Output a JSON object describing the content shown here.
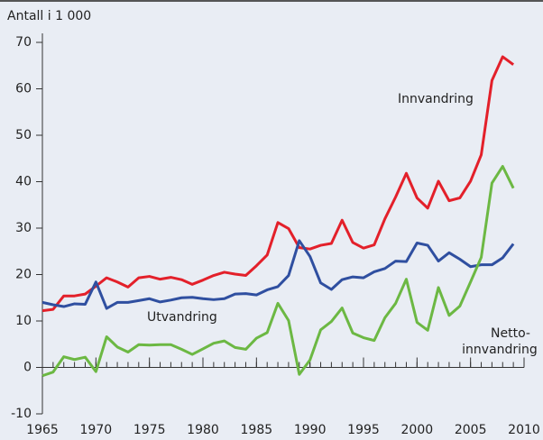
{
  "chart_data": {
    "type": "line",
    "y_axis_label": "Antall i 1 000",
    "x": [
      1965,
      1966,
      1967,
      1968,
      1969,
      1970,
      1971,
      1972,
      1973,
      1974,
      1975,
      1976,
      1977,
      1978,
      1979,
      1980,
      1981,
      1982,
      1983,
      1984,
      1985,
      1986,
      1987,
      1988,
      1989,
      1990,
      1991,
      1992,
      1993,
      1994,
      1995,
      1996,
      1997,
      1998,
      1999,
      2000,
      2001,
      2002,
      2003,
      2004,
      2005,
      2006,
      2007,
      2008,
      2009
    ],
    "series": [
      {
        "name": "Innvandring",
        "color": "#e3202a",
        "values": [
          12.2,
          12.5,
          15.4,
          15.4,
          15.8,
          17.5,
          19.3,
          18.4,
          17.3,
          19.3,
          19.6,
          19.0,
          19.4,
          18.9,
          17.9,
          18.8,
          19.8,
          20.5,
          20.1,
          19.8,
          21.9,
          24.2,
          31.2,
          29.9,
          25.8,
          25.5,
          26.3,
          26.7,
          31.7,
          26.9,
          25.7,
          26.4,
          32.0,
          36.7,
          41.8,
          36.5,
          34.3,
          40.1,
          35.9,
          36.5,
          40.1,
          45.8,
          61.8,
          66.9,
          65.2
        ]
      },
      {
        "name": "Utvandring",
        "color": "#2f4fa0",
        "values": [
          14.0,
          13.5,
          13.1,
          13.7,
          13.6,
          18.4,
          12.7,
          14.0,
          14.0,
          14.4,
          14.8,
          14.1,
          14.5,
          15.0,
          15.1,
          14.8,
          14.6,
          14.8,
          15.8,
          15.9,
          15.6,
          16.7,
          17.4,
          19.8,
          27.3,
          23.9,
          18.2,
          16.8,
          18.9,
          19.5,
          19.3,
          20.6,
          21.3,
          22.9,
          22.8,
          26.8,
          26.3,
          22.9,
          24.7,
          23.3,
          21.7,
          22.1,
          22.1,
          23.6,
          26.6
        ]
      },
      {
        "name": [
          "Netto-",
          "innvandring"
        ],
        "color": "#6cb843",
        "values": [
          -1.8,
          -1.0,
          2.3,
          1.7,
          2.2,
          -0.9,
          6.6,
          4.4,
          3.3,
          4.9,
          4.8,
          4.9,
          4.9,
          3.9,
          2.8,
          4.0,
          5.2,
          5.7,
          4.3,
          3.9,
          6.3,
          7.5,
          13.8,
          10.1,
          -1.5,
          1.6,
          8.1,
          9.9,
          12.8,
          7.4,
          6.4,
          5.8,
          10.7,
          13.8,
          19.0,
          9.7,
          8.0,
          17.2,
          11.2,
          13.2,
          18.4,
          23.7,
          39.7,
          43.3,
          38.6
        ]
      }
    ],
    "xlim": [
      1965,
      2010
    ],
    "xticks": [
      1965,
      1970,
      1975,
      1980,
      1985,
      1990,
      1995,
      2000,
      2005,
      2010
    ],
    "ylim": [
      -10,
      70
    ],
    "yticks": [
      -10,
      0,
      10,
      20,
      30,
      40,
      50,
      60,
      70
    ],
    "grid": false
  }
}
